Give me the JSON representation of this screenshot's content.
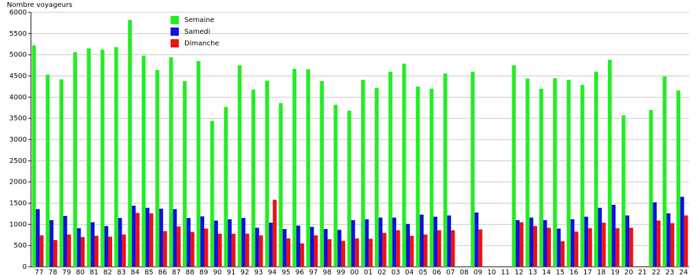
{
  "chart_data": {
    "type": "bar",
    "y_label": "Nombre voyageurs",
    "categories": [
      "77",
      "78",
      "79",
      "80",
      "81",
      "82",
      "83",
      "84",
      "85",
      "86",
      "87",
      "88",
      "89",
      "90",
      "91",
      "92",
      "93",
      "94",
      "95",
      "96",
      "97",
      "98",
      "99",
      "00",
      "01",
      "02",
      "03",
      "04",
      "05",
      "06",
      "07",
      "08",
      "09",
      "10",
      "11",
      "12",
      "13",
      "14",
      "15",
      "16",
      "17",
      "18",
      "19",
      "20",
      "21",
      "22",
      "23",
      "24"
    ],
    "series": [
      {
        "name": "Semaine",
        "color": "#22ee22",
        "values": [
          5220,
          4530,
          4420,
          5060,
          5150,
          5120,
          5180,
          5820,
          4980,
          4640,
          4940,
          4380,
          4850,
          3440,
          3770,
          4750,
          4180,
          4390,
          3860,
          4670,
          4660,
          4380,
          3820,
          3680,
          4410,
          4220,
          4600,
          4790,
          4250,
          4200,
          4560,
          null,
          4600,
          null,
          null,
          4750,
          4440,
          4200,
          4450,
          4410,
          4290,
          4600,
          4880,
          3570,
          null,
          3700,
          4490,
          4160
        ]
      },
      {
        "name": "Samedi",
        "color": "#1010e0",
        "values": [
          1360,
          1100,
          1200,
          910,
          1050,
          960,
          1150,
          1440,
          1390,
          1370,
          1360,
          1150,
          1190,
          1090,
          1120,
          1150,
          920,
          1040,
          890,
          970,
          940,
          890,
          870,
          1100,
          1120,
          1160,
          1160,
          1010,
          1230,
          1180,
          1210,
          null,
          1280,
          null,
          null,
          1100,
          1160,
          1100,
          900,
          1120,
          1180,
          1390,
          1460,
          1210,
          null,
          1520,
          1260,
          1650
        ]
      },
      {
        "name": "Dimanche",
        "color": "#ee1111",
        "values": [
          740,
          630,
          760,
          700,
          730,
          710,
          760,
          1270,
          1260,
          840,
          950,
          820,
          900,
          780,
          780,
          780,
          740,
          1580,
          670,
          550,
          740,
          650,
          610,
          670,
          660,
          800,
          860,
          730,
          760,
          860,
          860,
          null,
          880,
          null,
          null,
          1050,
          960,
          920,
          600,
          830,
          910,
          1040,
          910,
          920,
          null,
          1090,
          1030,
          1210
        ]
      }
    ],
    "ylim": [
      0,
      6000
    ],
    "yticks": [
      0,
      500,
      1000,
      1500,
      2000,
      2500,
      3000,
      3500,
      4000,
      4500,
      5000,
      5500,
      6000
    ],
    "grid": true,
    "legend": "top"
  }
}
